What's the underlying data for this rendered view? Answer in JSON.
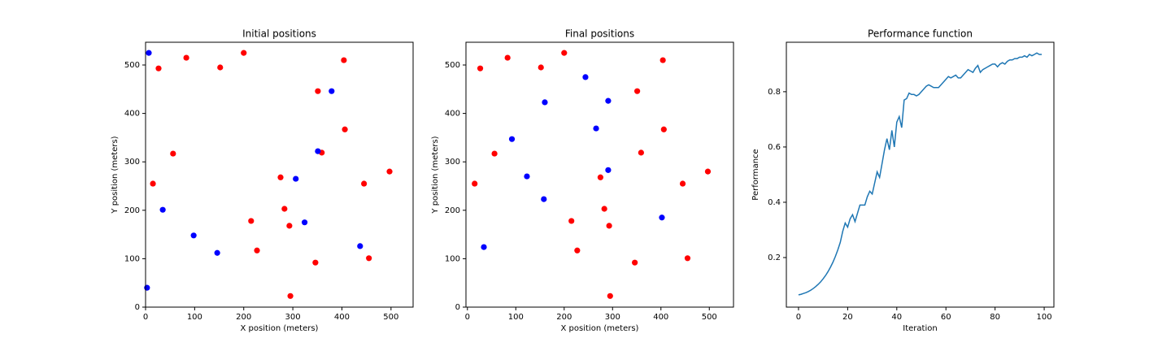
{
  "chart_data": [
    {
      "type": "scatter",
      "title": "Initial positions",
      "x_label": "X position (meters)",
      "y_label": "Y position (meters)",
      "xlim": [
        0,
        545
      ],
      "ylim": [
        0,
        547
      ],
      "xticks": [
        0,
        100,
        200,
        300,
        400,
        500
      ],
      "yticks": [
        0,
        100,
        200,
        300,
        400,
        500
      ],
      "series": [
        {
          "color": "red",
          "x": [
            26.5,
            83,
            200,
            152,
            56,
            15,
            351,
            404,
            406,
            359,
            275,
            215,
            283,
            293,
            227,
            295,
            346,
            445,
            497,
            455
          ],
          "y": [
            493,
            515,
            525,
            495,
            317,
            255,
            446,
            510,
            367,
            319,
            268,
            178,
            203,
            168,
            117,
            23,
            92,
            255,
            280,
            101
          ]
        },
        {
          "color": "blue",
          "x": [
            6.6,
            35,
            98,
            146,
            306,
            324,
            351,
            379,
            437,
            3
          ],
          "y": [
            525,
            201,
            148,
            112,
            265,
            175,
            322,
            446,
            126,
            40
          ]
        }
      ]
    },
    {
      "type": "scatter",
      "title": "Final positions",
      "x_label": "X position (meters)",
      "y_label": "Y position (meters)",
      "xlim": [
        -3,
        550
      ],
      "ylim": [
        0,
        547
      ],
      "xticks": [
        0,
        100,
        200,
        300,
        400,
        500
      ],
      "yticks": [
        0,
        100,
        200,
        300,
        400,
        500
      ],
      "series": [
        {
          "color": "red",
          "x": [
            26.5,
            83,
            200,
            152,
            56,
            15,
            351,
            404,
            406,
            359,
            275,
            215,
            283,
            293,
            227,
            295,
            346,
            445,
            497,
            455
          ],
          "y": [
            493,
            515,
            525,
            495,
            317,
            255,
            446,
            510,
            367,
            319,
            268,
            178,
            203,
            168,
            117,
            23,
            92,
            255,
            280,
            101
          ]
        },
        {
          "color": "blue",
          "x": [
            244,
            160,
            291,
            266,
            92,
            291,
            123,
            158,
            402,
            34
          ],
          "y": [
            475,
            423,
            426,
            369,
            347,
            283,
            270,
            223,
            185,
            124
          ]
        }
      ]
    },
    {
      "type": "line",
      "title": "Performance function",
      "x_label": "Iteration",
      "y_label": "Performance",
      "xlim": [
        -4.95,
        103.95
      ],
      "ylim": [
        0.0206,
        0.979
      ],
      "xticks": [
        0,
        20,
        40,
        60,
        80,
        100
      ],
      "yticks": [
        0.2,
        0.4,
        0.6,
        0.8
      ],
      "color": "#1f77b4",
      "x": [
        0,
        1,
        2,
        3,
        4,
        5,
        6,
        7,
        8,
        9,
        10,
        11,
        12,
        13,
        14,
        15,
        16,
        17,
        18,
        19,
        20,
        21,
        22,
        23,
        24,
        25,
        26,
        27,
        28,
        29,
        30,
        31,
        32,
        33,
        34,
        35,
        36,
        37,
        38,
        39,
        40,
        41,
        42,
        43,
        44,
        45,
        46,
        47,
        48,
        49,
        50,
        51,
        52,
        53,
        54,
        55,
        56,
        57,
        58,
        59,
        60,
        61,
        62,
        63,
        64,
        65,
        66,
        67,
        68,
        69,
        70,
        71,
        72,
        73,
        74,
        75,
        76,
        77,
        78,
        79,
        80,
        81,
        82,
        83,
        84,
        85,
        86,
        87,
        88,
        89,
        90,
        91,
        92,
        93,
        94,
        95,
        96,
        97,
        98,
        99
      ],
      "values": [
        0.065,
        0.067,
        0.07,
        0.073,
        0.077,
        0.082,
        0.088,
        0.095,
        0.103,
        0.112,
        0.123,
        0.135,
        0.149,
        0.165,
        0.183,
        0.204,
        0.228,
        0.255,
        0.295,
        0.325,
        0.31,
        0.34,
        0.355,
        0.33,
        0.36,
        0.39,
        0.39,
        0.39,
        0.42,
        0.44,
        0.43,
        0.47,
        0.51,
        0.49,
        0.54,
        0.59,
        0.63,
        0.59,
        0.66,
        0.6,
        0.69,
        0.71,
        0.67,
        0.77,
        0.775,
        0.795,
        0.79,
        0.79,
        0.785,
        0.79,
        0.8,
        0.81,
        0.82,
        0.825,
        0.82,
        0.815,
        0.815,
        0.815,
        0.825,
        0.835,
        0.845,
        0.855,
        0.85,
        0.855,
        0.86,
        0.85,
        0.85,
        0.86,
        0.87,
        0.88,
        0.875,
        0.87,
        0.885,
        0.895,
        0.87,
        0.88,
        0.885,
        0.89,
        0.895,
        0.9,
        0.9,
        0.89,
        0.9,
        0.905,
        0.9,
        0.91,
        0.915,
        0.915,
        0.92,
        0.92,
        0.925,
        0.925,
        0.93,
        0.925,
        0.935,
        0.93,
        0.935,
        0.94,
        0.935,
        0.935
      ]
    }
  ]
}
